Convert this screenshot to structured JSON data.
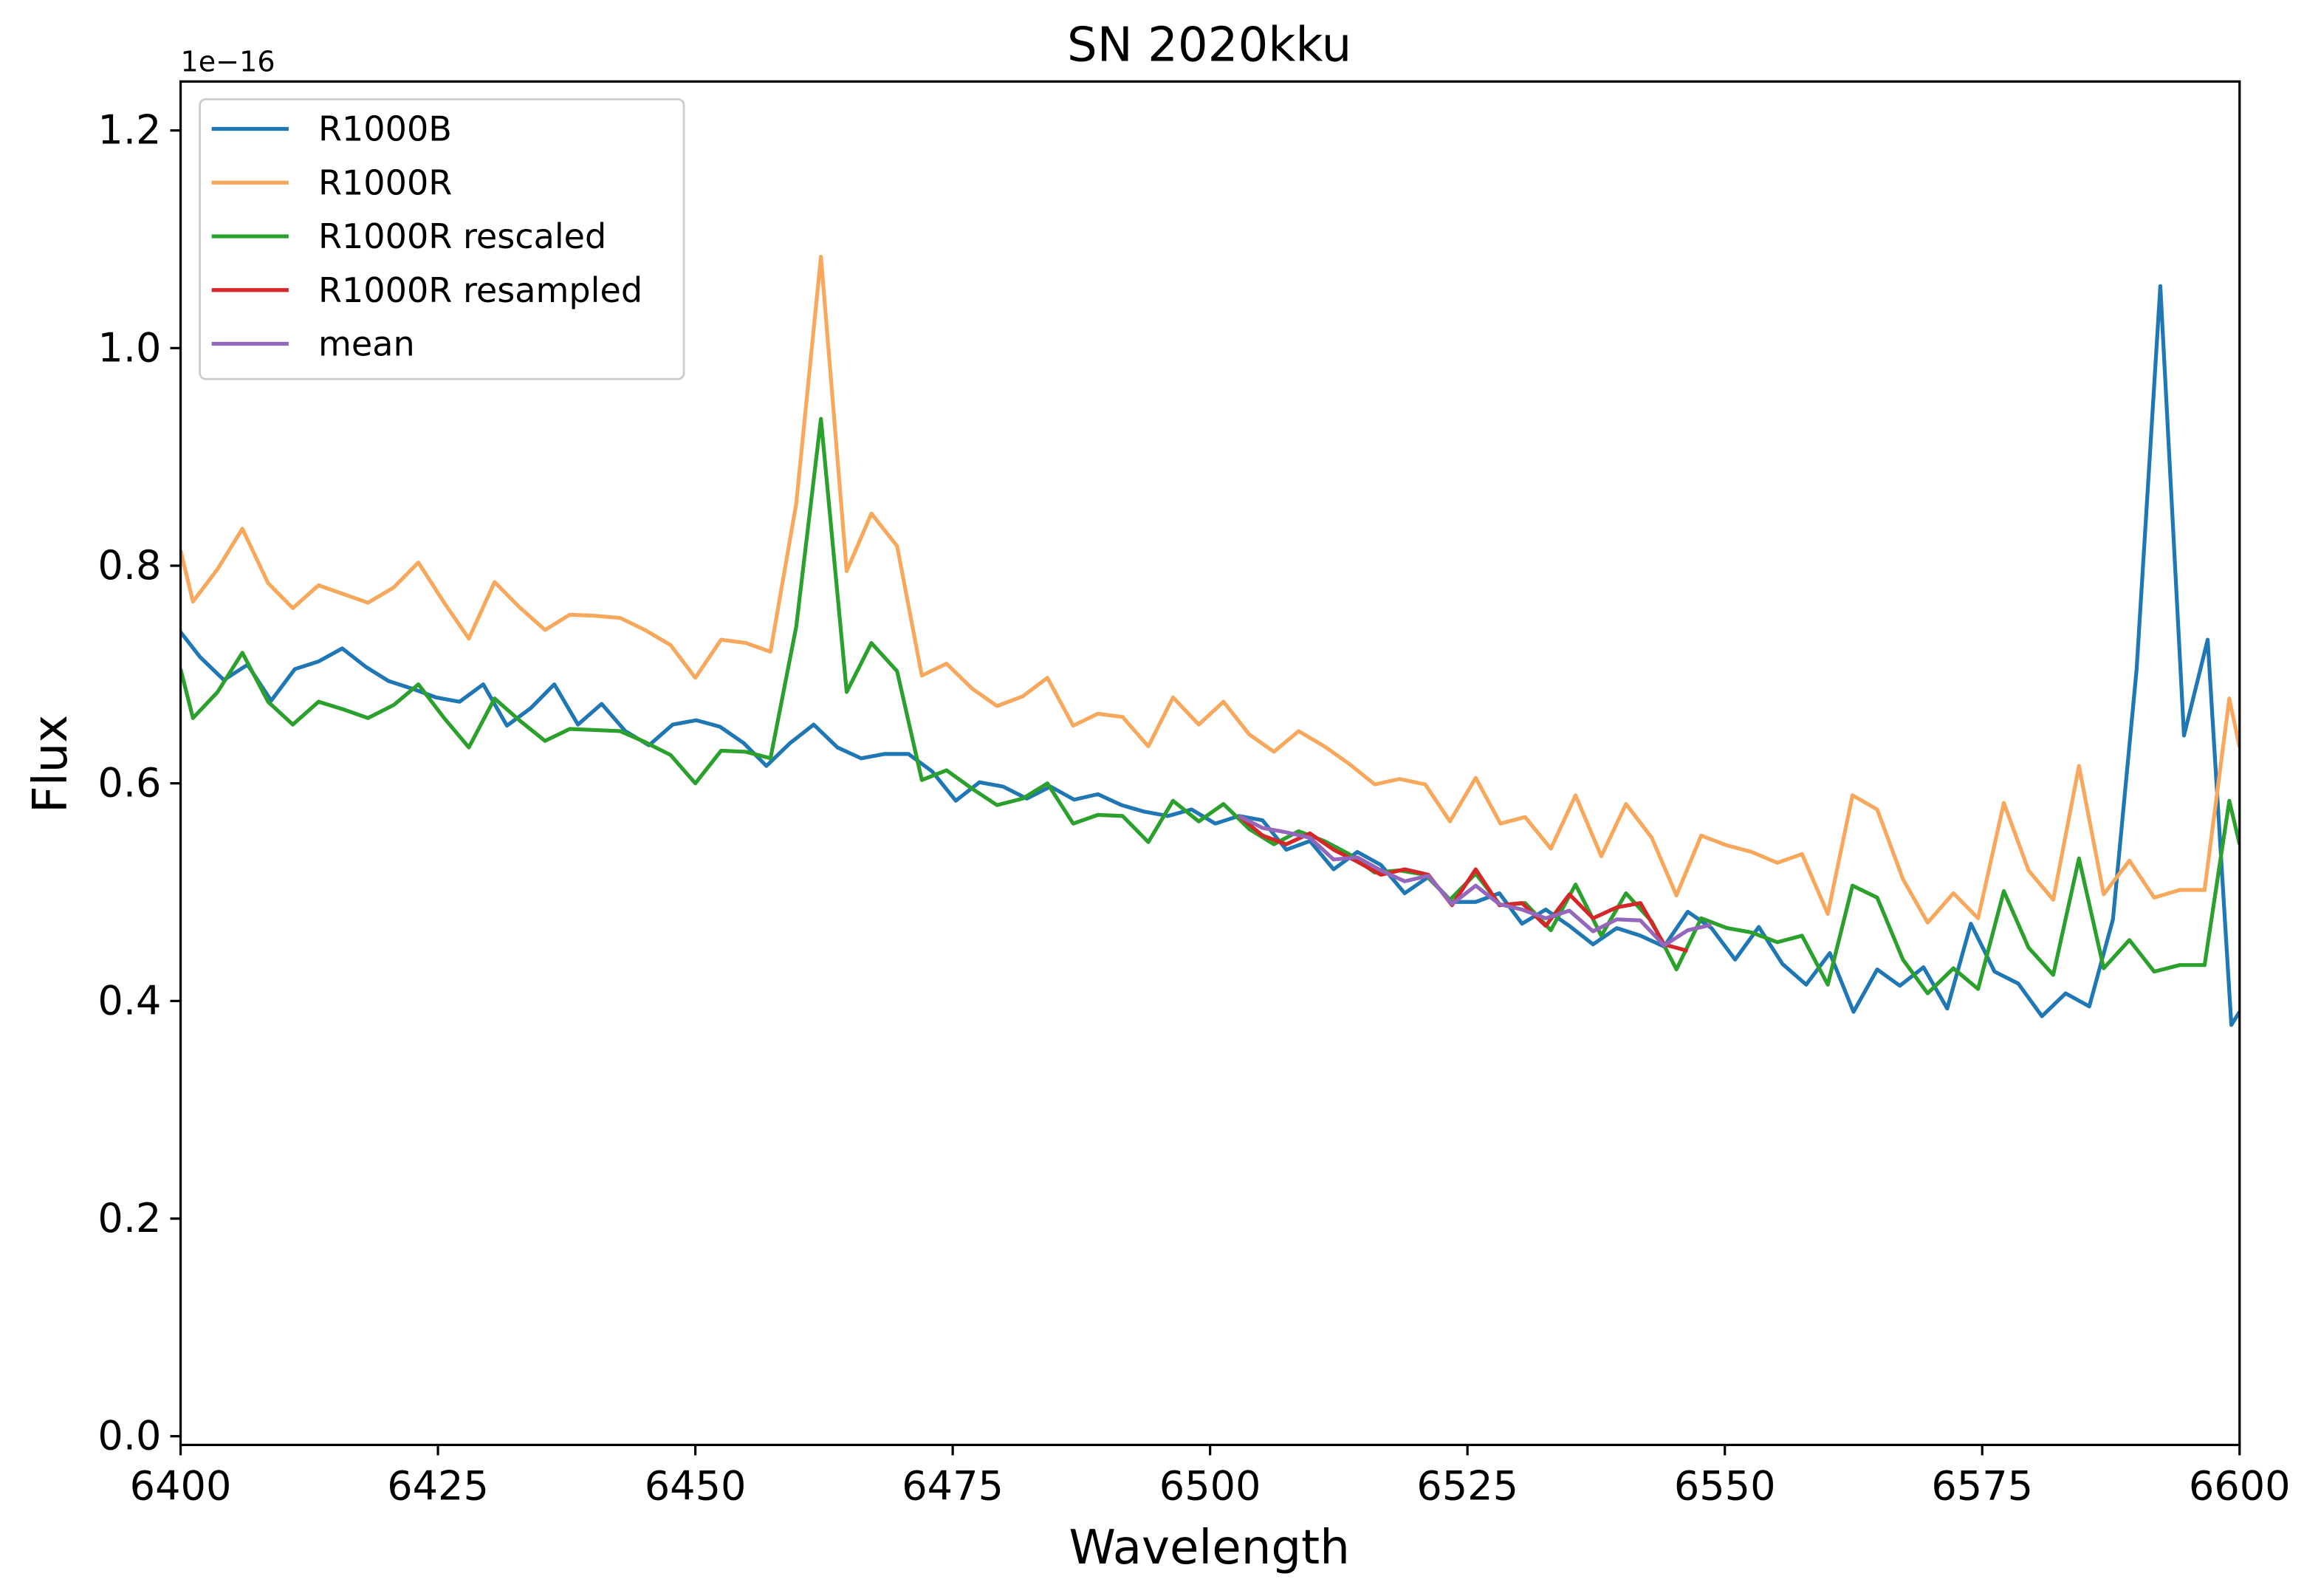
{
  "chart_data": {
    "type": "line",
    "title": "SN 2020kku",
    "xlabel": "Wavelength",
    "ylabel": "Flux",
    "y_offset_label": "1e−16",
    "xlim": [
      6400,
      6600
    ],
    "ylim": [
      -0.008,
      1.245
    ],
    "xticks": [
      6400,
      6425,
      6450,
      6475,
      6500,
      6525,
      6550,
      6575,
      6600
    ],
    "yticks": [
      {
        "value": 0,
        "label": "0.0"
      },
      0.2,
      0.4,
      0.6,
      0.8,
      {
        "value": 1,
        "label": "1.0"
      },
      1.2
    ],
    "grid": false,
    "legend": "upper left",
    "series": [
      {
        "name": "R1000B",
        "color": "#1f77b4",
        "x": [
          6400,
          6401.9,
          6404.2,
          6406.5,
          6408.8,
          6411.1,
          6413.4,
          6415.7,
          6418.0,
          6420.2,
          6422.5,
          6424.8,
          6427.1,
          6429.4,
          6431.7,
          6434.0,
          6436.3,
          6438.6,
          6440.9,
          6443.2,
          6445.5,
          6447.8,
          6450.1,
          6452.4,
          6454.7,
          6456.9,
          6459.2,
          6461.5,
          6463.8,
          6466.1,
          6468.4,
          6470.7,
          6473.0,
          6475.3,
          6477.6,
          6479.9,
          6482.2,
          6484.5,
          6486.8,
          6489.1,
          6491.4,
          6493.6,
          6495.9,
          6498.2,
          6500.5,
          6502.8,
          6505.1,
          6507.4,
          6509.7,
          6512.0,
          6514.3,
          6516.6,
          6518.9,
          6521.2,
          6523.5,
          6525.8,
          6528.1,
          6530.3,
          6532.6,
          6534.9,
          6537.2,
          6539.5,
          6541.8,
          6544.1,
          6546.4,
          6548.7,
          6551.0,
          6553.3,
          6555.6,
          6557.9,
          6560.2,
          6562.5,
          6564.8,
          6567.0,
          6569.3,
          6571.6,
          6573.9,
          6576.2,
          6578.5,
          6580.8,
          6583.1,
          6585.4,
          6587.7,
          6590.0,
          6592.3,
          6594.6,
          6596.9,
          6599.2,
          6600
        ],
        "values": [
          0.739,
          0.716,
          0.695,
          0.709,
          0.676,
          0.705,
          0.712,
          0.724,
          0.707,
          0.694,
          0.687,
          0.679,
          0.675,
          0.691,
          0.653,
          0.669,
          0.691,
          0.654,
          0.673,
          0.648,
          0.635,
          0.654,
          0.658,
          0.652,
          0.637,
          0.616,
          0.637,
          0.654,
          0.633,
          0.623,
          0.627,
          0.627,
          0.611,
          0.584,
          0.601,
          0.597,
          0.586,
          0.597,
          0.585,
          0.59,
          0.58,
          0.574,
          0.57,
          0.576,
          0.563,
          0.57,
          0.566,
          0.539,
          0.547,
          0.521,
          0.537,
          0.525,
          0.499,
          0.514,
          0.491,
          0.491,
          0.499,
          0.471,
          0.484,
          0.469,
          0.452,
          0.467,
          0.46,
          0.45,
          0.482,
          0.467,
          0.438,
          0.468,
          0.434,
          0.415,
          0.444,
          0.39,
          0.429,
          0.414,
          0.431,
          0.393,
          0.471,
          0.427,
          0.416,
          0.386,
          0.407,
          0.395,
          0.475,
          0.705,
          1.057,
          0.644,
          0.732,
          0.378,
          0.39
        ]
      },
      {
        "name": "R1000R",
        "color": "#f7a85c",
        "x": [
          6400,
          6401.2,
          6403.6,
          6406.0,
          6408.5,
          6410.9,
          6413.4,
          6415.8,
          6418.2,
          6420.7,
          6423.1,
          6425.6,
          6428.0,
          6430.5,
          6432.9,
          6435.4,
          6437.8,
          6440.2,
          6442.7,
          6445.1,
          6447.6,
          6450.0,
          6452.5,
          6454.9,
          6457.3,
          6459.8,
          6462.2,
          6464.7,
          6467.1,
          6469.6,
          6472.0,
          6474.4,
          6476.9,
          6479.3,
          6481.8,
          6484.2,
          6486.7,
          6489.1,
          6491.5,
          6494.0,
          6496.4,
          6498.9,
          6501.3,
          6503.8,
          6506.2,
          6508.6,
          6511.1,
          6513.5,
          6516.0,
          6518.4,
          6520.9,
          6523.3,
          6525.8,
          6528.2,
          6530.6,
          6533.1,
          6535.5,
          6538.0,
          6540.4,
          6542.9,
          6545.3,
          6547.7,
          6550.2,
          6552.6,
          6555.1,
          6557.5,
          6560.0,
          6562.4,
          6564.8,
          6567.3,
          6569.7,
          6572.2,
          6574.6,
          6577.1,
          6579.5,
          6581.9,
          6584.4,
          6586.8,
          6589.3,
          6591.7,
          6594.2,
          6596.6,
          6599.0,
          6600
        ],
        "values": [
          0.814,
          0.767,
          0.797,
          0.834,
          0.784,
          0.761,
          0.782,
          0.774,
          0.766,
          0.78,
          0.803,
          0.766,
          0.733,
          0.785,
          0.762,
          0.741,
          0.755,
          0.754,
          0.752,
          0.741,
          0.727,
          0.697,
          0.732,
          0.729,
          0.721,
          0.857,
          1.084,
          0.795,
          0.848,
          0.818,
          0.699,
          0.71,
          0.687,
          0.671,
          0.68,
          0.697,
          0.653,
          0.664,
          0.661,
          0.634,
          0.679,
          0.654,
          0.675,
          0.645,
          0.629,
          0.648,
          0.634,
          0.618,
          0.599,
          0.604,
          0.599,
          0.565,
          0.605,
          0.563,
          0.569,
          0.54,
          0.589,
          0.533,
          0.581,
          0.55,
          0.497,
          0.552,
          0.543,
          0.537,
          0.527,
          0.535,
          0.48,
          0.589,
          0.576,
          0.512,
          0.472,
          0.499,
          0.476,
          0.582,
          0.52,
          0.493,
          0.616,
          0.498,
          0.529,
          0.495,
          0.502,
          0.502,
          0.678,
          0.633
        ]
      },
      {
        "name": "R1000R rescaled",
        "color": "#2ca02c",
        "x": [
          6400,
          6401.2,
          6403.6,
          6406.0,
          6408.5,
          6410.9,
          6413.4,
          6415.8,
          6418.2,
          6420.7,
          6423.1,
          6425.6,
          6428.0,
          6430.5,
          6432.9,
          6435.4,
          6437.8,
          6440.2,
          6442.7,
          6445.1,
          6447.6,
          6450.0,
          6452.5,
          6454.9,
          6457.3,
          6459.8,
          6462.2,
          6464.7,
          6467.1,
          6469.6,
          6472.0,
          6474.4,
          6476.9,
          6479.3,
          6481.8,
          6484.2,
          6486.7,
          6489.1,
          6491.5,
          6494.0,
          6496.4,
          6498.9,
          6501.3,
          6503.8,
          6506.2,
          6508.6,
          6511.1,
          6513.5,
          6516.0,
          6518.4,
          6520.9,
          6523.3,
          6525.8,
          6528.2,
          6530.6,
          6533.1,
          6535.5,
          6538.0,
          6540.4,
          6542.9,
          6545.3,
          6547.7,
          6550.2,
          6552.6,
          6555.1,
          6557.5,
          6560.0,
          6562.4,
          6564.8,
          6567.3,
          6569.7,
          6572.2,
          6574.6,
          6577.1,
          6579.5,
          6581.9,
          6584.4,
          6586.8,
          6589.3,
          6591.7,
          6594.2,
          6596.6,
          6599.0,
          6600
        ],
        "values": [
          0.705,
          0.66,
          0.684,
          0.72,
          0.675,
          0.654,
          0.675,
          0.668,
          0.66,
          0.672,
          0.691,
          0.66,
          0.633,
          0.678,
          0.658,
          0.639,
          0.65,
          0.649,
          0.648,
          0.638,
          0.626,
          0.6,
          0.63,
          0.629,
          0.623,
          0.744,
          0.935,
          0.684,
          0.729,
          0.703,
          0.603,
          0.612,
          0.595,
          0.58,
          0.586,
          0.6,
          0.563,
          0.571,
          0.57,
          0.546,
          0.584,
          0.565,
          0.581,
          0.558,
          0.544,
          0.556,
          0.547,
          0.535,
          0.518,
          0.52,
          0.516,
          0.493,
          0.517,
          0.488,
          0.49,
          0.465,
          0.507,
          0.46,
          0.499,
          0.473,
          0.429,
          0.476,
          0.467,
          0.463,
          0.454,
          0.46,
          0.415,
          0.506,
          0.495,
          0.438,
          0.407,
          0.43,
          0.411,
          0.501,
          0.449,
          0.424,
          0.531,
          0.43,
          0.456,
          0.427,
          0.433,
          0.433,
          0.584,
          0.544
        ]
      },
      {
        "name": "R1000R resampled",
        "color": "#d62728",
        "x": [
          6502.8,
          6505.1,
          6507.4,
          6509.7,
          6512.0,
          6514.3,
          6516.6,
          6518.9,
          6521.2,
          6523.5,
          6525.8,
          6528.1,
          6530.3,
          6532.6,
          6534.9,
          6537.2,
          6539.5,
          6541.8,
          6544.1,
          6546.4
        ],
        "values": [
          0.57,
          0.552,
          0.544,
          0.554,
          0.539,
          0.528,
          0.516,
          0.521,
          0.516,
          0.488,
          0.521,
          0.488,
          0.49,
          0.469,
          0.498,
          0.476,
          0.486,
          0.49,
          0.452,
          0.446
        ]
      },
      {
        "name": "mean",
        "color": "#9467bd",
        "x": [
          6502.8,
          6505.1,
          6507.4,
          6509.7,
          6512.0,
          6514.3,
          6516.6,
          6518.9,
          6521.2,
          6523.5,
          6525.8,
          6528.1,
          6530.3,
          6532.6,
          6534.9,
          6537.2,
          6539.5,
          6541.8,
          6544.1,
          6546.4,
          6548.7
        ],
        "values": [
          0.57,
          0.559,
          0.555,
          0.55,
          0.53,
          0.532,
          0.52,
          0.51,
          0.515,
          0.489,
          0.506,
          0.489,
          0.484,
          0.476,
          0.483,
          0.464,
          0.475,
          0.474,
          0.451,
          0.465,
          0.47
        ]
      }
    ]
  }
}
